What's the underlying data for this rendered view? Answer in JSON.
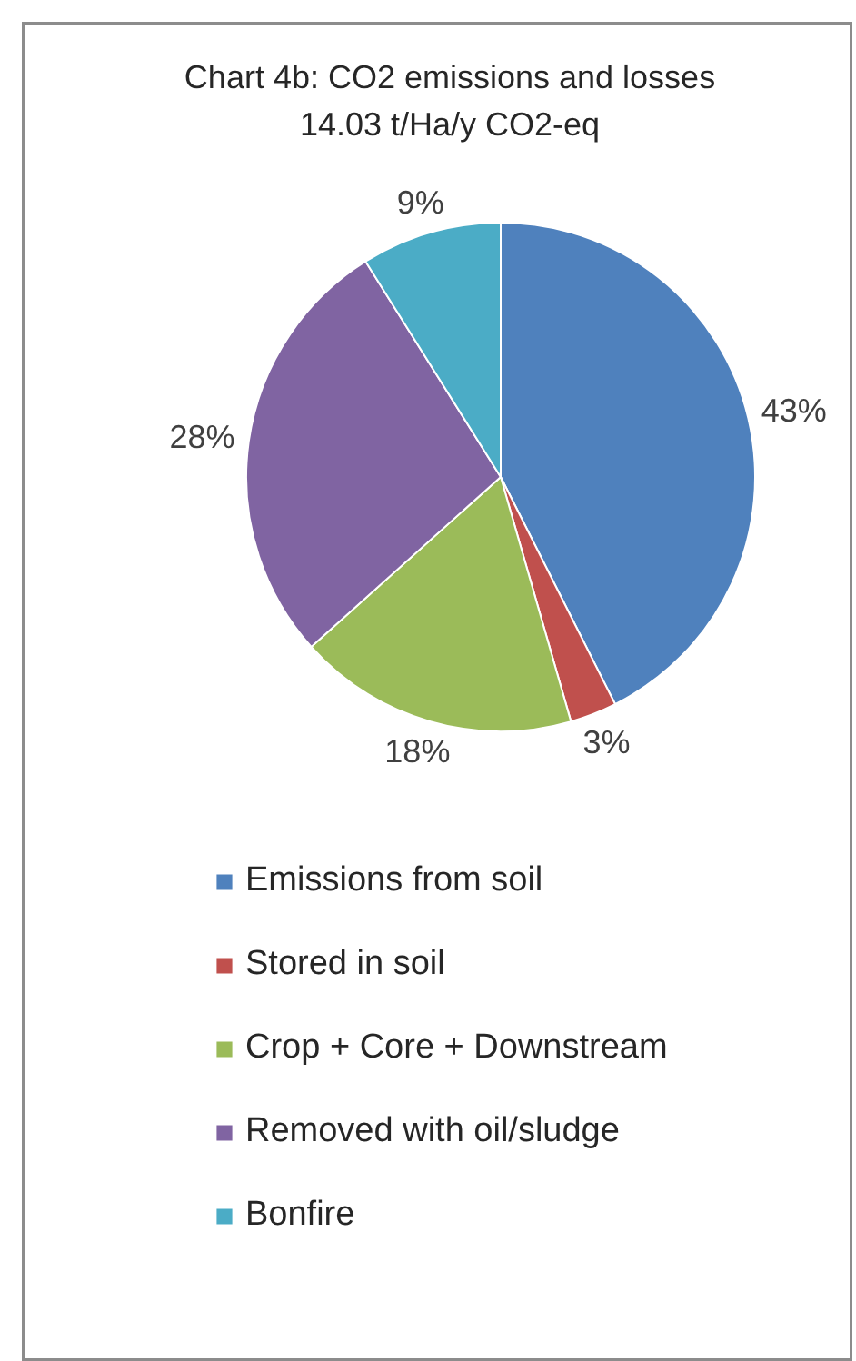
{
  "chart_data": {
    "type": "pie",
    "title": "Chart 4b: CO2 emissions and losses",
    "subtitle": "14.03 t/Ha/y CO2-eq",
    "categories": [
      "Emissions from soil",
      "Stored in soil",
      "Crop + Core + Downstream",
      "Removed with oil/sludge",
      "Bonfire"
    ],
    "values": [
      43,
      3,
      18,
      28,
      9
    ],
    "value_labels": [
      "43%",
      "3%",
      "18%",
      "28%",
      "9%"
    ],
    "colors": [
      "#4f81bd",
      "#c0504d",
      "#9bbb59",
      "#8064a2",
      "#4bacc6"
    ],
    "legend": "bottom"
  }
}
